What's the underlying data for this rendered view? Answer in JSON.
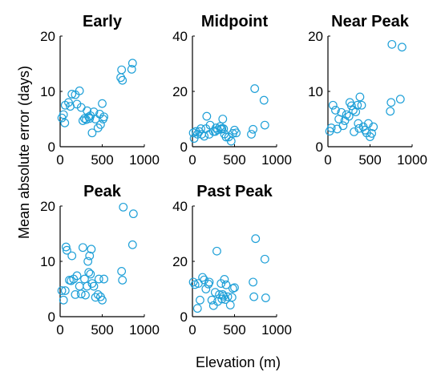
{
  "figure": {
    "xlabel": "Elevation  (m)",
    "ylabel": "Mean absolute error (days)",
    "marker_color": "#1fa0d8"
  },
  "chart_data": [
    {
      "type": "scatter",
      "title": "Early",
      "xlim": [
        0,
        1000
      ],
      "ylim": [
        0,
        20
      ],
      "xticks": [
        0,
        500,
        1000
      ],
      "yticks": [
        0,
        10,
        20
      ],
      "points": [
        [
          20,
          5.2
        ],
        [
          40,
          5.8
        ],
        [
          55,
          4.3
        ],
        [
          60,
          7.5
        ],
        [
          100,
          8
        ],
        [
          120,
          7.3
        ],
        [
          140,
          9.5
        ],
        [
          180,
          9.4
        ],
        [
          200,
          7.7
        ],
        [
          230,
          10.1
        ],
        [
          250,
          7.1
        ],
        [
          270,
          4.7
        ],
        [
          290,
          5.1
        ],
        [
          310,
          4.9
        ],
        [
          320,
          6.5
        ],
        [
          340,
          5.4
        ],
        [
          350,
          5.1
        ],
        [
          360,
          5.6
        ],
        [
          380,
          2.5
        ],
        [
          400,
          6.3
        ],
        [
          420,
          5
        ],
        [
          450,
          3.4
        ],
        [
          470,
          5.9
        ],
        [
          480,
          4
        ],
        [
          500,
          7.8
        ],
        [
          510,
          5
        ],
        [
          520,
          5.4
        ],
        [
          720,
          12.5
        ],
        [
          730,
          13.9
        ],
        [
          740,
          12
        ],
        [
          850,
          14
        ],
        [
          860,
          15.1
        ]
      ]
    },
    {
      "type": "scatter",
      "title": "Midpoint",
      "xlim": [
        0,
        1000
      ],
      "ylim": [
        0,
        40
      ],
      "xticks": [
        0,
        500,
        1000
      ],
      "yticks": [
        0,
        20,
        40
      ],
      "points": [
        [
          10,
          5
        ],
        [
          20,
          3
        ],
        [
          40,
          5.5
        ],
        [
          60,
          4.5
        ],
        [
          80,
          5.5
        ],
        [
          100,
          6.5
        ],
        [
          110,
          4.5
        ],
        [
          140,
          3.8
        ],
        [
          160,
          6.5
        ],
        [
          170,
          11
        ],
        [
          200,
          4.5
        ],
        [
          210,
          7.8
        ],
        [
          250,
          5.5
        ],
        [
          270,
          5.5
        ],
        [
          280,
          6.8
        ],
        [
          300,
          6.1
        ],
        [
          330,
          7.3
        ],
        [
          340,
          6.3
        ],
        [
          350,
          6.6
        ],
        [
          360,
          10
        ],
        [
          370,
          6.5
        ],
        [
          380,
          4.6
        ],
        [
          400,
          3.5
        ],
        [
          430,
          3.5
        ],
        [
          460,
          2
        ],
        [
          480,
          4.8
        ],
        [
          500,
          6
        ],
        [
          520,
          5
        ],
        [
          700,
          4.5
        ],
        [
          720,
          6.3
        ],
        [
          740,
          21
        ],
        [
          850,
          16.8
        ],
        [
          860,
          7.8
        ]
      ]
    },
    {
      "type": "scatter",
      "title": "Near Peak",
      "xlim": [
        0,
        1000
      ],
      "ylim": [
        0,
        20
      ],
      "xticks": [
        0,
        500,
        1000
      ],
      "yticks": [
        0,
        10,
        20
      ],
      "points": [
        [
          20,
          2.8
        ],
        [
          40,
          3.4
        ],
        [
          60,
          7.5
        ],
        [
          90,
          6.6
        ],
        [
          110,
          3.2
        ],
        [
          130,
          5
        ],
        [
          160,
          6.2
        ],
        [
          180,
          3.8
        ],
        [
          200,
          4.7
        ],
        [
          220,
          5.8
        ],
        [
          250,
          5.5
        ],
        [
          260,
          8
        ],
        [
          280,
          7.4
        ],
        [
          300,
          6.6
        ],
        [
          310,
          2.7
        ],
        [
          330,
          6.3
        ],
        [
          350,
          7.5
        ],
        [
          360,
          4.2
        ],
        [
          370,
          3.3
        ],
        [
          380,
          9
        ],
        [
          400,
          7.5
        ],
        [
          420,
          3.6
        ],
        [
          440,
          3
        ],
        [
          460,
          2.5
        ],
        [
          480,
          4.2
        ],
        [
          500,
          1.8
        ],
        [
          520,
          2.4
        ],
        [
          540,
          3.6
        ],
        [
          740,
          6.4
        ],
        [
          750,
          8
        ],
        [
          760,
          18.5
        ],
        [
          860,
          8.6
        ],
        [
          880,
          18
        ]
      ]
    },
    {
      "type": "scatter",
      "title": "Peak",
      "xlim": [
        0,
        1000
      ],
      "ylim": [
        0,
        20
      ],
      "xticks": [
        0,
        500,
        1000
      ],
      "yticks": [
        0,
        10,
        20
      ],
      "points": [
        [
          20,
          4.7
        ],
        [
          40,
          3
        ],
        [
          60,
          4.7
        ],
        [
          70,
          12.6
        ],
        [
          80,
          12
        ],
        [
          110,
          6.6
        ],
        [
          130,
          6.5
        ],
        [
          140,
          11
        ],
        [
          160,
          6.8
        ],
        [
          180,
          4
        ],
        [
          200,
          7.4
        ],
        [
          230,
          5.5
        ],
        [
          250,
          4.1
        ],
        [
          270,
          12.5
        ],
        [
          290,
          6.8
        ],
        [
          300,
          3.9
        ],
        [
          320,
          5.5
        ],
        [
          330,
          10
        ],
        [
          340,
          8
        ],
        [
          350,
          11
        ],
        [
          360,
          7.7
        ],
        [
          370,
          12.2
        ],
        [
          380,
          6
        ],
        [
          400,
          5.5
        ],
        [
          420,
          3.5
        ],
        [
          450,
          4
        ],
        [
          460,
          6.8
        ],
        [
          480,
          3.6
        ],
        [
          500,
          3
        ],
        [
          520,
          6.8
        ],
        [
          730,
          8.2
        ],
        [
          740,
          6.6
        ],
        [
          750,
          19.8
        ],
        [
          860,
          13
        ],
        [
          870,
          18.6
        ]
      ]
    },
    {
      "type": "scatter",
      "title": "Past Peak",
      "xlim": [
        0,
        1000
      ],
      "ylim": [
        0,
        40
      ],
      "xticks": [
        0,
        500,
        1000
      ],
      "yticks": [
        0,
        20,
        40
      ],
      "points": [
        [
          10,
          12.5
        ],
        [
          30,
          11.6
        ],
        [
          60,
          3
        ],
        [
          70,
          12
        ],
        [
          90,
          6
        ],
        [
          120,
          14.2
        ],
        [
          140,
          13.3
        ],
        [
          160,
          10
        ],
        [
          190,
          11.8
        ],
        [
          200,
          12.5
        ],
        [
          230,
          6
        ],
        [
          250,
          4
        ],
        [
          270,
          8.8
        ],
        [
          290,
          23.7
        ],
        [
          300,
          5.5
        ],
        [
          320,
          8
        ],
        [
          340,
          12
        ],
        [
          350,
          6.4
        ],
        [
          360,
          8
        ],
        [
          370,
          7.4
        ],
        [
          380,
          13.5
        ],
        [
          390,
          6.2
        ],
        [
          400,
          11.5
        ],
        [
          420,
          7.2
        ],
        [
          450,
          4.2
        ],
        [
          470,
          7
        ],
        [
          480,
          10.2
        ],
        [
          500,
          10.5
        ],
        [
          720,
          12.5
        ],
        [
          730,
          7.2
        ],
        [
          750,
          28.2
        ],
        [
          860,
          20.8
        ],
        [
          870,
          6.8
        ]
      ]
    }
  ]
}
